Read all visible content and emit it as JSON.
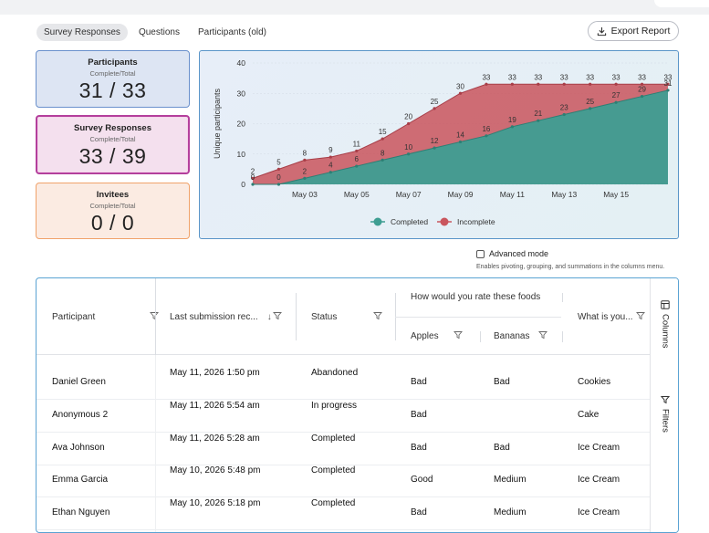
{
  "tabs": [
    {
      "label": "Survey Responses",
      "active": true
    },
    {
      "label": "Questions",
      "active": false
    },
    {
      "label": "Participants (old)",
      "active": false
    }
  ],
  "export_label": "Export Report",
  "cards": {
    "participants": {
      "title": "Participants",
      "sub": "Complete/Total",
      "value": "31 / 33"
    },
    "survey": {
      "title": "Survey Responses",
      "sub": "Complete/Total",
      "value": "33 / 39"
    },
    "invitees": {
      "title": "Invitees",
      "sub": "Complete/Total",
      "value": "0 / 0"
    }
  },
  "chart_data": {
    "type": "area",
    "ylabel": "Unique participants",
    "ylim": [
      0,
      40
    ],
    "yticks": [
      0,
      10,
      20,
      30,
      40
    ],
    "xticks": [
      "May 03",
      "May 05",
      "May 07",
      "May 09",
      "May 11",
      "May 13",
      "May 15"
    ],
    "x": [
      "May 01",
      "May 02",
      "May 03",
      "May 04",
      "May 05",
      "May 06",
      "May 07",
      "May 08",
      "May 09",
      "May 10",
      "May 11",
      "May 12",
      "May 13",
      "May 14",
      "May 15",
      "May 16",
      "May 17"
    ],
    "series": [
      {
        "name": "Completed",
        "color": "#3e9e92",
        "values": [
          0,
          0,
          2,
          4,
          6,
          8,
          10,
          12,
          14,
          16,
          19,
          21,
          23,
          25,
          27,
          29,
          31
        ]
      },
      {
        "name": "Incomplete",
        "color": "#c9555d",
        "values": [
          2,
          5,
          8,
          9,
          11,
          15,
          20,
          25,
          30,
          33,
          33,
          33,
          33,
          33,
          33,
          33,
          33
        ]
      }
    ],
    "legend": "bottom"
  },
  "advanced_mode": {
    "label": "Advanced mode",
    "hint": "Enables pivoting, grouping, and summations in the columns menu."
  },
  "table": {
    "headers": {
      "participant": "Participant",
      "last_submission": "Last submission rec...",
      "status": "Status",
      "group": "How would you rate these foods",
      "apples": "Apples",
      "bananas": "Bananas",
      "what": "What is you..."
    },
    "rows": [
      {
        "participant": "Daniel Green",
        "last": "May 11, 2026 1:50 pm",
        "status": "Abandoned",
        "apples": "Bad",
        "bananas": "Bad",
        "what": "Cookies"
      },
      {
        "participant": "Anonymous 2",
        "last": "May 11, 2026 5:54 am",
        "status": "In progress",
        "apples": "Bad",
        "bananas": "",
        "what": "Cake"
      },
      {
        "participant": "Ava Johnson",
        "last": "May 11, 2026 5:28 am",
        "status": "Completed",
        "apples": "Bad",
        "bananas": "Bad",
        "what": "Ice Cream"
      },
      {
        "participant": "Emma Garcia",
        "last": "May 10, 2026 5:48 pm",
        "status": "Completed",
        "apples": "Good",
        "bananas": "Medium",
        "what": "Ice Cream"
      },
      {
        "participant": "Ethan Nguyen",
        "last": "May 10, 2026 5:18 pm",
        "status": "Completed",
        "apples": "Bad",
        "bananas": "Medium",
        "what": "Ice Cream"
      }
    ]
  },
  "side_panel": {
    "columns": "Columns",
    "filters": "Filters"
  }
}
